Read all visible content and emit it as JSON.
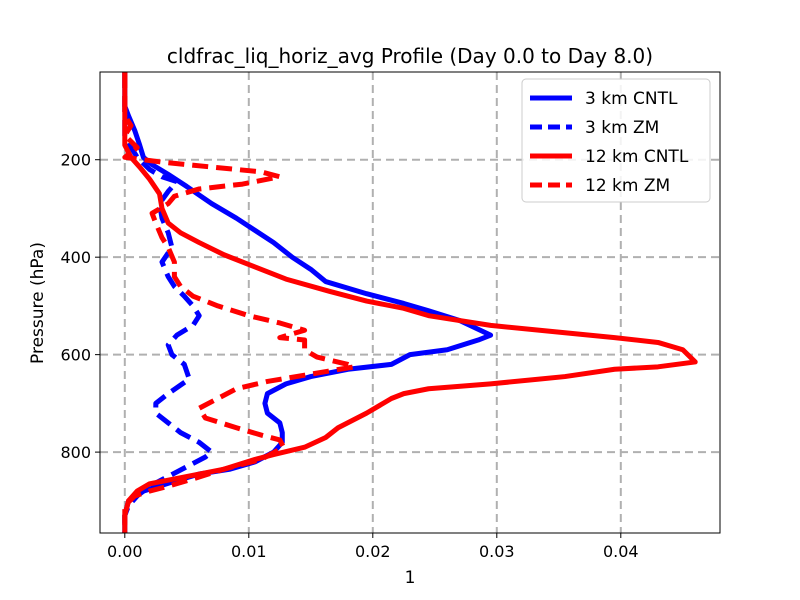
{
  "chart_data": {
    "type": "line",
    "title": "cldfrac_liq_horiz_avg Profile (Day 0.0 to Day 8.0)",
    "xlabel": "1",
    "ylabel": "Pressure (hPa)",
    "xlim": [
      -0.002,
      0.048
    ],
    "ylim": [
      966,
      20
    ],
    "y_inverted": true,
    "grid": true,
    "legend_position": "upper right",
    "x_ticks": [
      0.0,
      0.01,
      0.02,
      0.03,
      0.04
    ],
    "x_tick_labels": [
      "0.00",
      "0.01",
      "0.02",
      "0.03",
      "0.04"
    ],
    "y_ticks": [
      200,
      400,
      600,
      800
    ],
    "y_tick_labels": [
      "200",
      "400",
      "600",
      "800"
    ],
    "colors": {
      "cntl_3km": "#0000ff",
      "zm_3km": "#0000ff",
      "cntl_12km": "#ff0000",
      "zm_12km": "#ff0000",
      "grid": "#b0b0b0"
    },
    "series": [
      {
        "name": "3 km CNTL",
        "color": "#0000ff",
        "dash": "solid",
        "points": [
          [
            0,
            20
          ],
          [
            0,
            90
          ],
          [
            0.0003,
            110
          ],
          [
            0.0008,
            140
          ],
          [
            0.0012,
            170
          ],
          [
            0.0015,
            195
          ],
          [
            0.0022,
            210
          ],
          [
            0.0035,
            230
          ],
          [
            0.005,
            255
          ],
          [
            0.007,
            290
          ],
          [
            0.009,
            320
          ],
          [
            0.0105,
            345
          ],
          [
            0.012,
            370
          ],
          [
            0.0135,
            400
          ],
          [
            0.015,
            425
          ],
          [
            0.0162,
            450
          ],
          [
            0.0195,
            475
          ],
          [
            0.0225,
            495
          ],
          [
            0.0245,
            510
          ],
          [
            0.027,
            530
          ],
          [
            0.0295,
            560
          ],
          [
            0.0285,
            570
          ],
          [
            0.026,
            590
          ],
          [
            0.023,
            600
          ],
          [
            0.0215,
            620
          ],
          [
            0.018,
            630
          ],
          [
            0.015,
            645
          ],
          [
            0.013,
            660
          ],
          [
            0.0115,
            680
          ],
          [
            0.0113,
            700
          ],
          [
            0.0115,
            720
          ],
          [
            0.0125,
            740
          ],
          [
            0.0127,
            760
          ],
          [
            0.0127,
            780
          ],
          [
            0.012,
            800
          ],
          [
            0.0105,
            820
          ],
          [
            0.0085,
            835
          ],
          [
            0.006,
            845
          ],
          [
            0.004,
            860
          ],
          [
            0.0015,
            880
          ],
          [
            0.0003,
            900
          ],
          [
            0,
            930
          ],
          [
            0,
            966
          ]
        ]
      },
      {
        "name": "3 km ZM",
        "color": "#0000ff",
        "dash": "dashed",
        "points": [
          [
            0,
            20
          ],
          [
            0,
            100
          ],
          [
            0,
            120
          ],
          [
            0,
            150
          ],
          [
            0.0004,
            170
          ],
          [
            0.001,
            195
          ],
          [
            0.002,
            220
          ],
          [
            0.003,
            235
          ],
          [
            0.0042,
            245
          ],
          [
            0.0035,
            265
          ],
          [
            0.0028,
            290
          ],
          [
            0.003,
            320
          ],
          [
            0.0035,
            350
          ],
          [
            0.0038,
            380
          ],
          [
            0.003,
            410
          ],
          [
            0.0035,
            440
          ],
          [
            0.004,
            460
          ],
          [
            0.0048,
            480
          ],
          [
            0.0055,
            500
          ],
          [
            0.006,
            520
          ],
          [
            0.0055,
            540
          ],
          [
            0.0042,
            560
          ],
          [
            0.0035,
            580
          ],
          [
            0.0038,
            600
          ],
          [
            0.0048,
            620
          ],
          [
            0.0052,
            650
          ],
          [
            0.0035,
            680
          ],
          [
            0.0025,
            700
          ],
          [
            0.0025,
            720
          ],
          [
            0.0035,
            740
          ],
          [
            0.0045,
            760
          ],
          [
            0.006,
            780
          ],
          [
            0.007,
            800
          ],
          [
            0.0065,
            810
          ],
          [
            0.005,
            830
          ],
          [
            0.0035,
            850
          ],
          [
            0.002,
            870
          ],
          [
            0.001,
            890
          ],
          [
            0.0003,
            910
          ],
          [
            0,
            930
          ],
          [
            0,
            966
          ]
        ]
      },
      {
        "name": "12 km CNTL",
        "color": "#ff0000",
        "dash": "solid",
        "points": [
          [
            0,
            20
          ],
          [
            0,
            90
          ],
          [
            0,
            130
          ],
          [
            0,
            170
          ],
          [
            0.0005,
            195
          ],
          [
            0.0012,
            215
          ],
          [
            0.002,
            240
          ],
          [
            0.0028,
            270
          ],
          [
            0.003,
            300
          ],
          [
            0.0035,
            330
          ],
          [
            0.0045,
            350
          ],
          [
            0.006,
            370
          ],
          [
            0.008,
            395
          ],
          [
            0.0105,
            420
          ],
          [
            0.013,
            445
          ],
          [
            0.0165,
            470
          ],
          [
            0.0195,
            490
          ],
          [
            0.0225,
            505
          ],
          [
            0.0245,
            520
          ],
          [
            0.0295,
            540
          ],
          [
            0.0355,
            555
          ],
          [
            0.0395,
            565
          ],
          [
            0.043,
            575
          ],
          [
            0.045,
            590
          ],
          [
            0.046,
            615
          ],
          [
            0.043,
            625
          ],
          [
            0.0395,
            630
          ],
          [
            0.0355,
            645
          ],
          [
            0.0295,
            660
          ],
          [
            0.0245,
            670
          ],
          [
            0.0225,
            680
          ],
          [
            0.0215,
            690
          ],
          [
            0.0195,
            720
          ],
          [
            0.0172,
            750
          ],
          [
            0.0162,
            770
          ],
          [
            0.0145,
            790
          ],
          [
            0.012,
            805
          ],
          [
            0.0105,
            815
          ],
          [
            0.008,
            835
          ],
          [
            0.006,
            845
          ],
          [
            0.004,
            855
          ],
          [
            0.002,
            865
          ],
          [
            0.001,
            880
          ],
          [
            0.0003,
            900
          ],
          [
            0,
            930
          ],
          [
            0,
            966
          ]
        ]
      },
      {
        "name": "12 km ZM",
        "color": "#ff0000",
        "dash": "dashed",
        "points": [
          [
            0,
            20
          ],
          [
            0,
            90
          ],
          [
            0,
            110
          ],
          [
            0.0005,
            130
          ],
          [
            0,
            150
          ],
          [
            0.001,
            175
          ],
          [
            0,
            195
          ],
          [
            0.003,
            205
          ],
          [
            0.007,
            215
          ],
          [
            0.011,
            225
          ],
          [
            0.0125,
            235
          ],
          [
            0.0095,
            250
          ],
          [
            0.006,
            260
          ],
          [
            0.004,
            275
          ],
          [
            0.0035,
            290
          ],
          [
            0.0022,
            310
          ],
          [
            0.0025,
            330
          ],
          [
            0.003,
            360
          ],
          [
            0.0035,
            380
          ],
          [
            0.004,
            410
          ],
          [
            0.004,
            440
          ],
          [
            0.0045,
            460
          ],
          [
            0.0055,
            480
          ],
          [
            0.0075,
            500
          ],
          [
            0.01,
            520
          ],
          [
            0.0125,
            535
          ],
          [
            0.0145,
            550
          ],
          [
            0.0125,
            565
          ],
          [
            0.0145,
            570
          ],
          [
            0.0145,
            580
          ],
          [
            0.0145,
            590
          ],
          [
            0.0155,
            605
          ],
          [
            0.018,
            620
          ],
          [
            0.0185,
            625
          ],
          [
            0.015,
            640
          ],
          [
            0.0115,
            655
          ],
          [
            0.009,
            670
          ],
          [
            0.0075,
            690
          ],
          [
            0.006,
            710
          ],
          [
            0.0065,
            730
          ],
          [
            0.009,
            750
          ],
          [
            0.011,
            765
          ],
          [
            0.0125,
            775
          ],
          [
            0.0128,
            790
          ],
          [
            0.011,
            815
          ],
          [
            0.008,
            835
          ],
          [
            0.0055,
            855
          ],
          [
            0.0035,
            870
          ],
          [
            0.002,
            880
          ],
          [
            0.0008,
            890
          ],
          [
            0,
            910
          ],
          [
            0,
            940
          ],
          [
            0,
            966
          ]
        ]
      }
    ]
  }
}
